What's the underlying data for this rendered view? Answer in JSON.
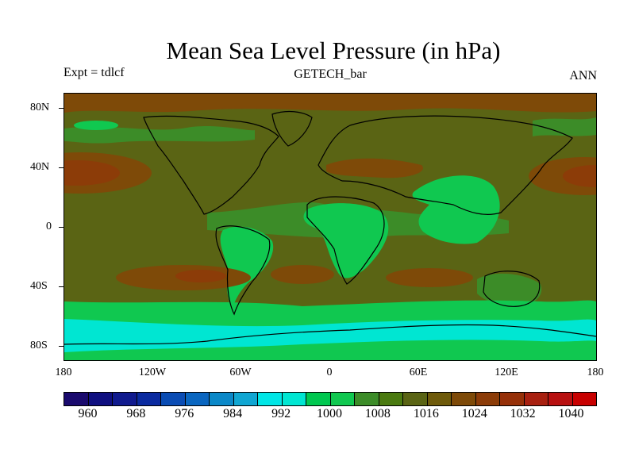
{
  "title": "Mean Sea Level Pressure (in hPa)",
  "subtitle_left": "Expt = tdlcf",
  "subtitle_center": "GETECH_bar",
  "subtitle_right": "ANN",
  "y_ticks": [
    "80N",
    "40N",
    "0",
    "40S",
    "80S"
  ],
  "x_ticks": [
    "180",
    "120W",
    "60W",
    "0",
    "60E",
    "120E",
    "180"
  ],
  "colorbar": {
    "colors": [
      "#1a0a6e",
      "#0f0f80",
      "#101a8e",
      "#0a2aa0",
      "#0a4cb4",
      "#0a66c0",
      "#0a88c8",
      "#10a6d2",
      "#00e6e6",
      "#00e6d2",
      "#00c850",
      "#10c850",
      "#3c8c28",
      "#4a7a10",
      "#5a6414",
      "#6e5a0a",
      "#7e4a08",
      "#8c3c08",
      "#963008",
      "#a82010",
      "#b81010",
      "#c80000"
    ],
    "labels": [
      "960",
      "968",
      "976",
      "984",
      "992",
      "1000",
      "1008",
      "1016",
      "1024",
      "1032",
      "1040"
    ]
  },
  "palette": {
    "base": "#5a6414",
    "high": "#7e4a08",
    "higher": "#8c3c08",
    "mid_green": "#3c8c28",
    "green": "#10c850",
    "cyan": "#00e6d2",
    "coast": "#000000"
  }
}
